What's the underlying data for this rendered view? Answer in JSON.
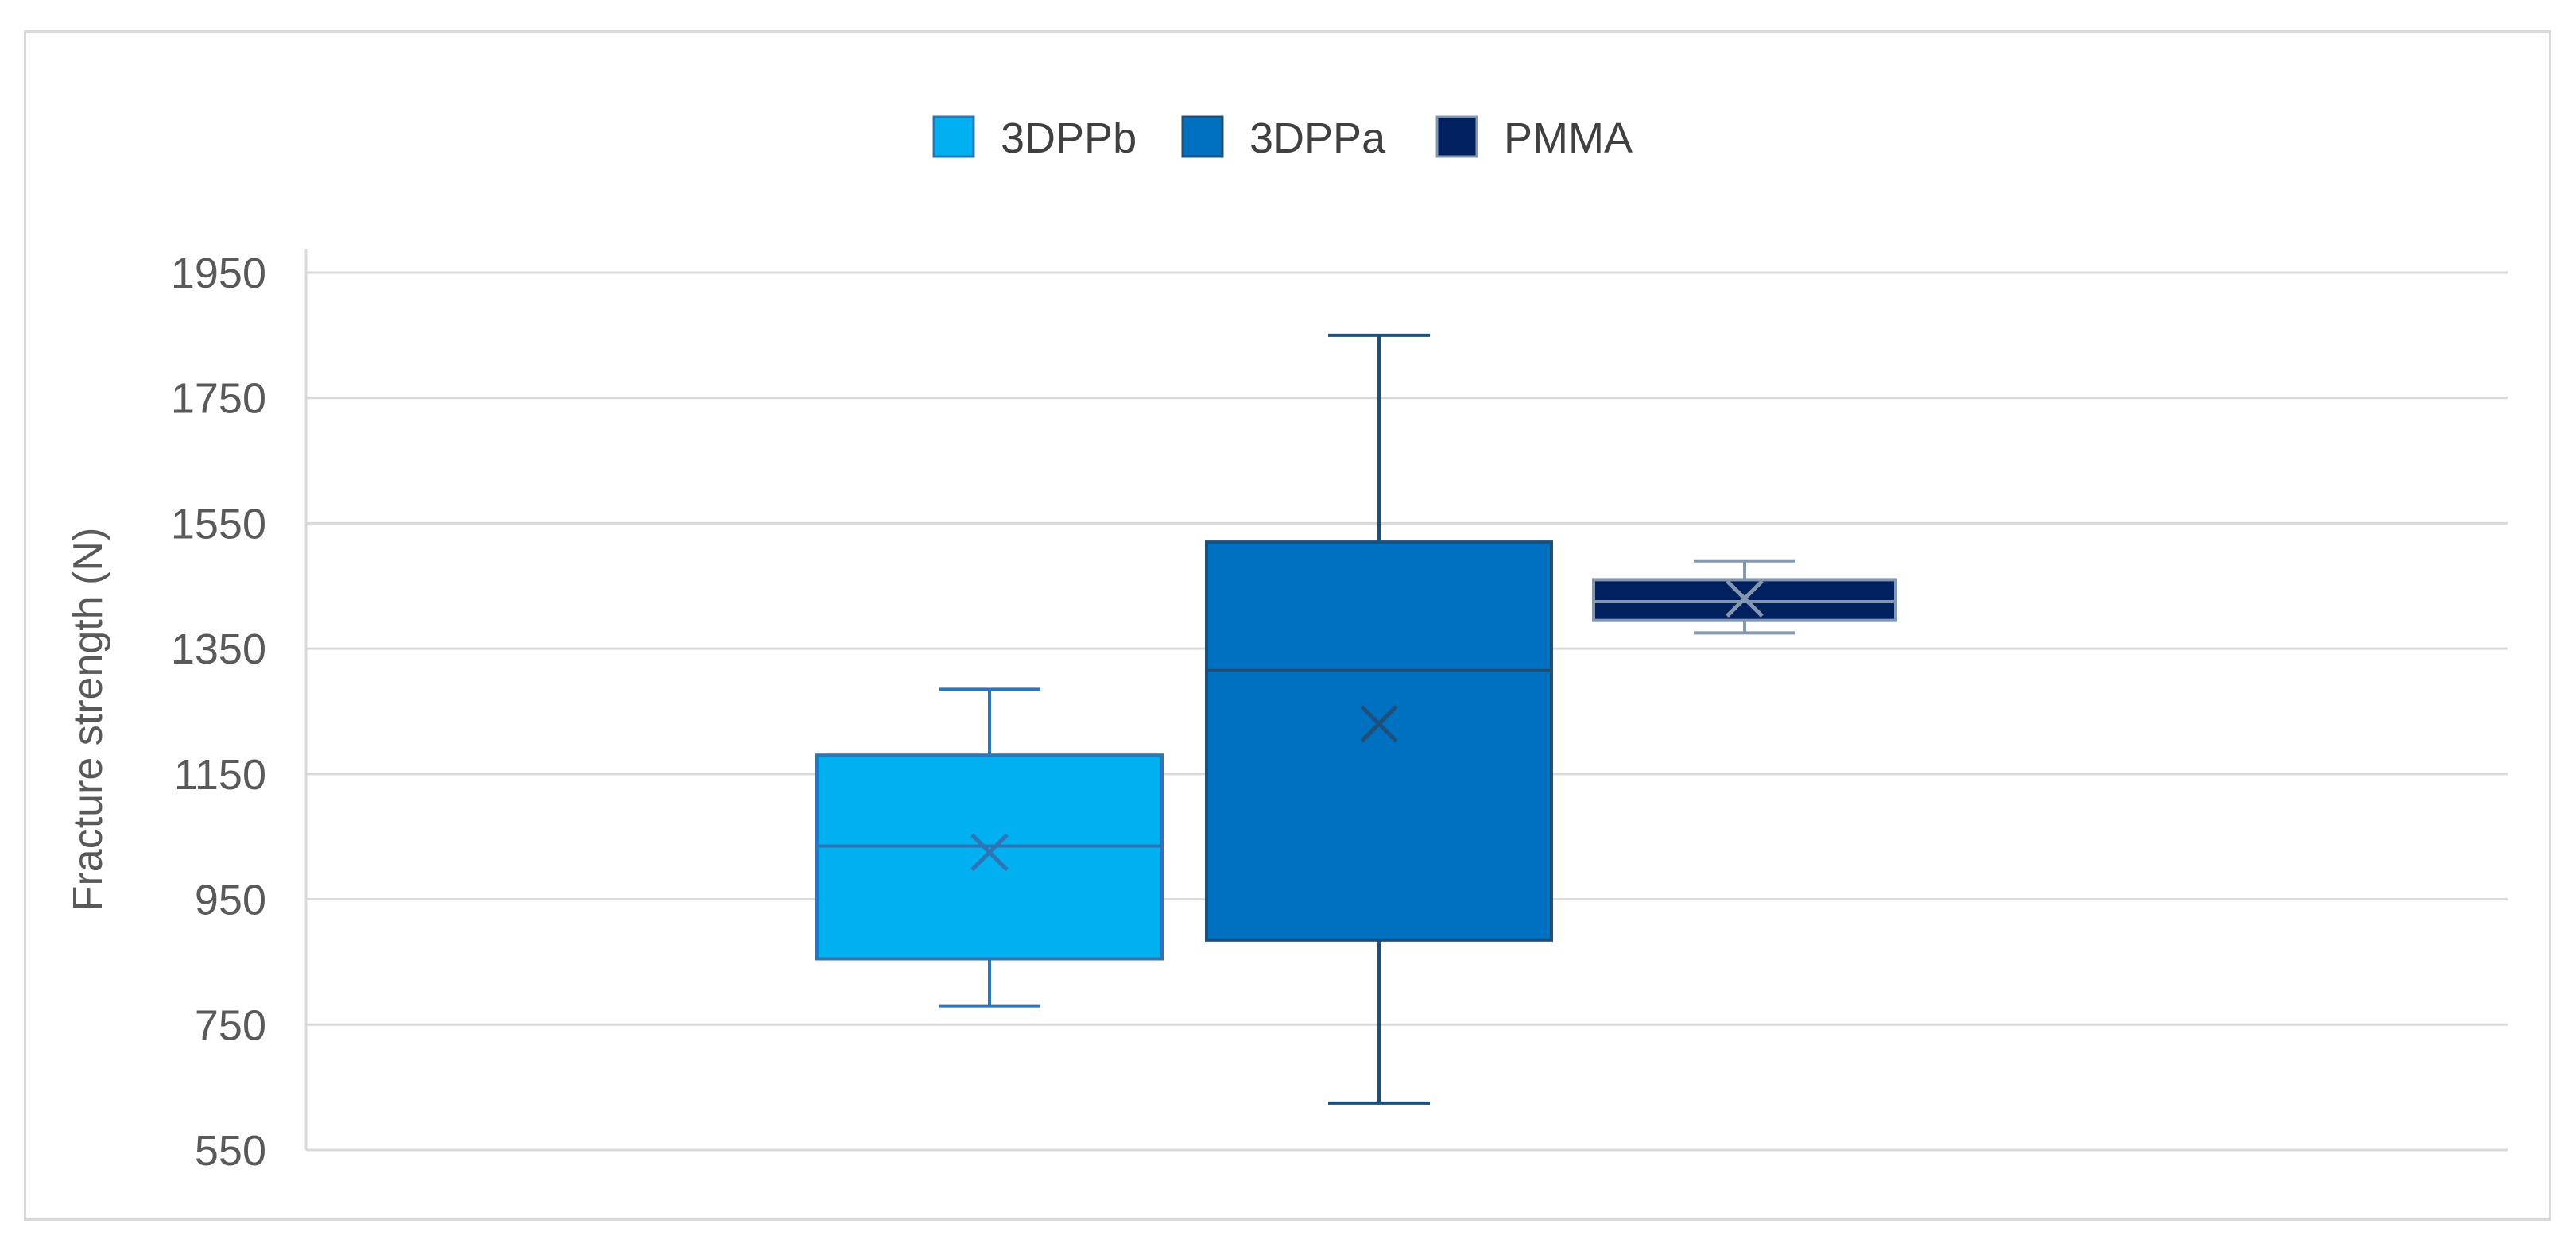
{
  "chart_data": {
    "type": "box",
    "ylabel": "Fracture  strength (N)",
    "xlabel": "",
    "ylim": [
      550,
      1950
    ],
    "yticks": [
      "1950",
      "1750",
      "1550",
      "1350",
      "1150",
      "950",
      "750",
      "550"
    ],
    "grid": true,
    "legend_position": "top",
    "series": [
      {
        "name": "3DPPb",
        "min": 780,
        "q1": 855,
        "median": 1035,
        "q3": 1180,
        "max": 1285,
        "mean": 1025,
        "color": "#00B0F0",
        "stroke": "#2E75B6"
      },
      {
        "name": "3DPPa",
        "min": 625,
        "q1": 885,
        "median": 1315,
        "q3": 1520,
        "max": 1850,
        "mean": 1230,
        "color": "#0070C0",
        "stroke": "#1F4E79"
      },
      {
        "name": "PMMA",
        "min": 1375,
        "q1": 1395,
        "median": 1425,
        "q3": 1460,
        "max": 1490,
        "mean": 1430,
        "color": "#002060",
        "stroke": "#8497B0"
      }
    ]
  }
}
